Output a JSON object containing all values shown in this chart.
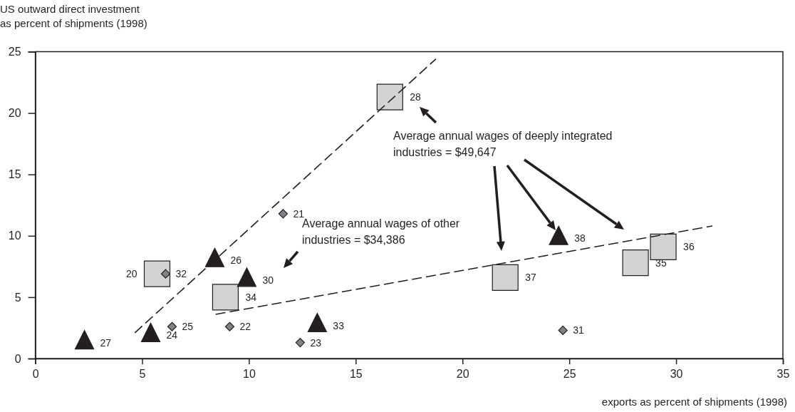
{
  "chart_data": {
    "type": "scatter",
    "xlabel": "exports as percent of shipments (1998)",
    "ylabel": "US outward direct investment\nas percent of shipments (1998)",
    "xlim": [
      0,
      35
    ],
    "xticks": [
      0,
      5,
      10,
      15,
      20,
      25,
      30,
      35
    ],
    "ylim": [
      0,
      25
    ],
    "yticks": [
      0,
      5,
      10,
      15,
      20,
      25
    ],
    "grid": false,
    "legend": false,
    "series": [
      {
        "type": "scatter",
        "marker": "triangle",
        "color": "#231f20",
        "x": [
          2.3,
          5.4,
          8.4,
          9.9,
          13.2,
          24.5
        ],
        "values": [
          1.3,
          1.9,
          8.0,
          6.4,
          2.7,
          9.8
        ]
      },
      {
        "type": "scatter",
        "marker": "square",
        "color": "#d1d3d4",
        "x": [
          5.7,
          8.9,
          16.6,
          22.0,
          28.1,
          29.4
        ],
        "values": [
          6.9,
          5.0,
          21.3,
          6.6,
          7.8,
          9.1
        ]
      },
      {
        "type": "scatter",
        "marker": "diamond",
        "color": "#808285",
        "x": [
          6.1,
          6.4,
          9.1,
          11.6,
          12.4,
          24.7
        ],
        "values": [
          6.9,
          2.6,
          2.6,
          11.8,
          1.3,
          2.3
        ]
      },
      {
        "type": "line",
        "marker": "none",
        "line_style": "dashed",
        "color": "#231f20",
        "x": [
          4.66,
          18.75
        ],
        "values": [
          2.1,
          24.4
        ]
      },
      {
        "type": "line",
        "marker": "none",
        "line_style": "dashed",
        "color": "#231f20",
        "x": [
          8.44,
          31.7
        ],
        "values": [
          3.6,
          10.8
        ]
      }
    ],
    "annotations": [
      {
        "text": "27",
        "x": 2.3,
        "y": 1.3
      },
      {
        "text": "24",
        "x": 5.4,
        "y": 1.9
      },
      {
        "text": "26",
        "x": 8.4,
        "y": 8.0
      },
      {
        "text": "30",
        "x": 9.9,
        "y": 6.4
      },
      {
        "text": "33",
        "x": 13.2,
        "y": 2.7
      },
      {
        "text": "38",
        "x": 24.5,
        "y": 9.8
      },
      {
        "text": "20",
        "x": 5.7,
        "y": 6.9
      },
      {
        "text": "34",
        "x": 8.9,
        "y": 5.0
      },
      {
        "text": "28",
        "x": 16.6,
        "y": 21.3
      },
      {
        "text": "37",
        "x": 22.0,
        "y": 6.6
      },
      {
        "text": "35",
        "x": 28.1,
        "y": 7.8
      },
      {
        "text": "36",
        "x": 29.4,
        "y": 9.1
      },
      {
        "text": "32",
        "x": 6.1,
        "y": 6.9
      },
      {
        "text": "25",
        "x": 6.4,
        "y": 2.6
      },
      {
        "text": "22",
        "x": 9.1,
        "y": 2.6
      },
      {
        "text": "21",
        "x": 11.6,
        "y": 11.8
      },
      {
        "text": "23",
        "x": 12.4,
        "y": 1.3
      },
      {
        "text": "31",
        "x": 24.7,
        "y": 2.3
      },
      "Average annual wages of deeply integrated\nindustries = $49,647",
      "Average annual wages of other\nindustries = $34,386"
    ]
  }
}
